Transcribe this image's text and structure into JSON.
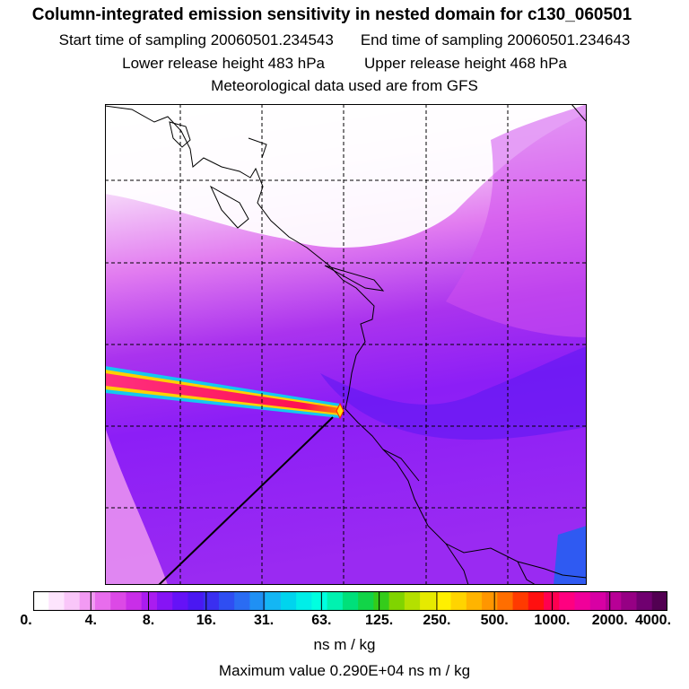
{
  "header": {
    "title": "Column-integrated emission sensitivity in nested domain for c130_060501",
    "start_label": "Start time of sampling 20060501.234543",
    "end_label": "End time of sampling 20060501.234643",
    "lower_label": "Lower release height  483 hPa",
    "upper_label": "Upper release height  468 hPa",
    "met_label": "Meteorological data used are from GFS"
  },
  "legend": {
    "ticks": [
      "0.",
      "4.",
      "8.",
      "16.",
      "31.",
      "63.",
      "125.",
      "250.",
      "500.",
      "1000.",
      "2000.",
      "4000."
    ],
    "colors": [
      "#ffffff",
      "#fde4fd",
      "#f9c6f9",
      "#f29af3",
      "#e86ded",
      "#dc49e6",
      "#c92ee8",
      "#aa1cf0",
      "#8614f5",
      "#6512f7",
      "#4a18f2",
      "#3a2ff0",
      "#2f4ef2",
      "#2a6cf3",
      "#1f90f4",
      "#14b6f4",
      "#00d4ee",
      "#00eee8",
      "#00ffe0",
      "#00f2b0",
      "#00e07a",
      "#12d448",
      "#34cc1a",
      "#80d400",
      "#b4e000",
      "#e6ea00",
      "#fff000",
      "#ffd400",
      "#ffb400",
      "#ff9600",
      "#ff6e00",
      "#ff3a00",
      "#ff1010",
      "#ff0050",
      "#ff0080",
      "#f0009a",
      "#d800a4",
      "#b80096",
      "#960084",
      "#700070",
      "#520052"
    ],
    "unit": "ns m / kg",
    "max_value": "Maximum value  0.290E+04 ns m / kg"
  }
}
